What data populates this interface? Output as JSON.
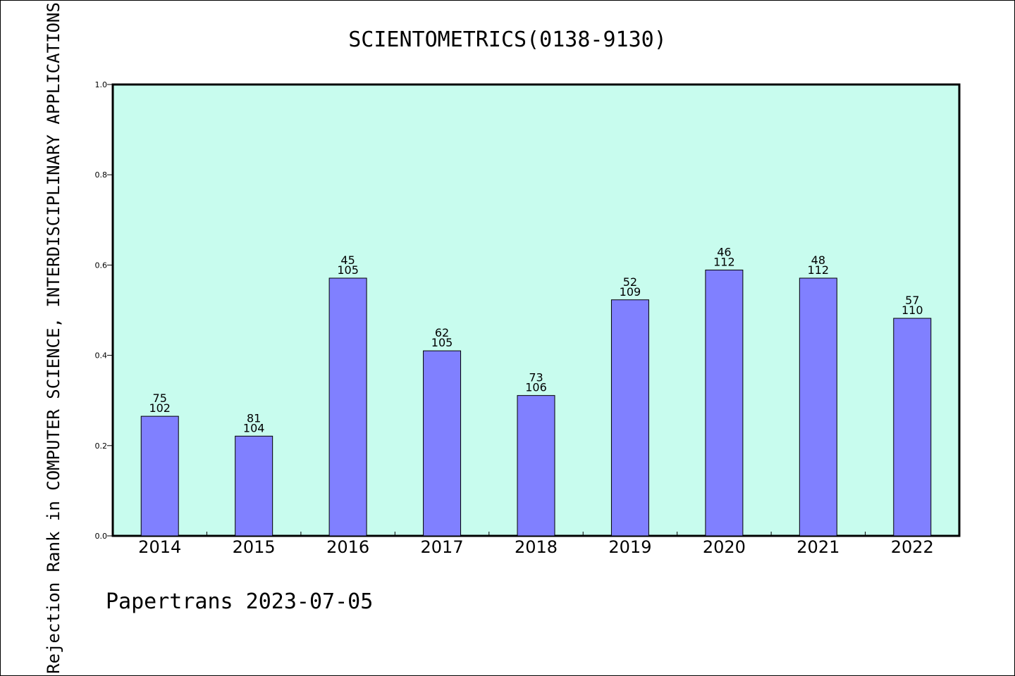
{
  "chart_data": {
    "type": "bar",
    "title": "SCIENTOMETRICS(0138-9130)",
    "ylabel": "Rejection Rank in COMPUTER SCIENCE, INTERDISCIPLINARY APPLICATIONS",
    "xlabel": "",
    "ylim": [
      0,
      1.0
    ],
    "yticks": [
      "0.0",
      "0.2",
      "0.4",
      "0.6",
      "0.8",
      "1.0"
    ],
    "grid": false,
    "categories": [
      "2014",
      "2015",
      "2016",
      "2017",
      "2018",
      "2019",
      "2020",
      "2021",
      "2022"
    ],
    "values": [
      0.265,
      0.221,
      0.571,
      0.41,
      0.311,
      0.523,
      0.589,
      0.571,
      0.482
    ],
    "rank": [
      75,
      81,
      45,
      62,
      73,
      52,
      46,
      48,
      57
    ],
    "total": [
      102,
      104,
      105,
      105,
      106,
      109,
      112,
      112,
      110
    ],
    "colors": {
      "plot_bg": "#c8fcee",
      "bar": "#8080ff",
      "bar_edge": "#000000"
    }
  },
  "footer": "Papertrans 2023-07-05"
}
